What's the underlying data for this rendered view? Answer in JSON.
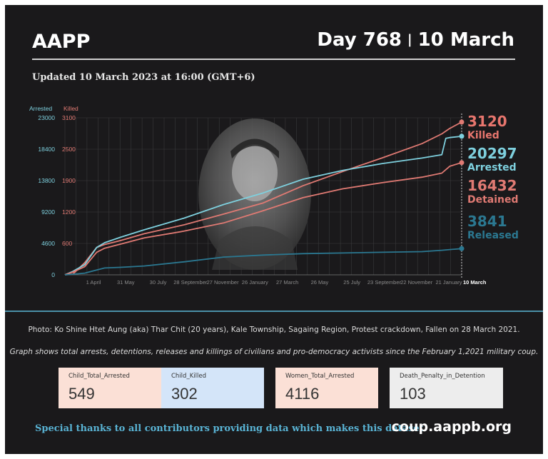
{
  "header": {
    "org": "AAPP",
    "day": "Day 768",
    "separator": "|",
    "date": "10 March"
  },
  "updated": "Updated 10 March 2023 at 16:00 (GMT+6)",
  "chart_data": {
    "type": "line",
    "left_axis_title": "Arrested",
    "right_axis_title": "Killed",
    "arrested_ticks": [
      "0",
      "4600",
      "9200",
      "13800",
      "18400",
      "23000"
    ],
    "killed_ticks": [
      "600",
      "1200",
      "1900",
      "2500",
      "3100"
    ],
    "arrested_range": [
      0,
      23000
    ],
    "x_labels": [
      "1 April",
      "31 May",
      "30 July",
      "28 September",
      "27 November",
      "26 January",
      "27 March",
      "26 May",
      "25 July",
      "23 September",
      "22 November",
      "21 January"
    ],
    "x_end_label": "10 March",
    "grid": true,
    "series": [
      {
        "name": "Killed",
        "color": "#e07a73",
        "x": [
          0,
          0.02,
          0.05,
          0.08,
          0.1,
          0.14,
          0.2,
          0.3,
          0.4,
          0.5,
          0.6,
          0.7,
          0.8,
          0.9,
          0.95,
          0.97,
          1.0
        ],
        "values": [
          0,
          15,
          250,
          560,
          620,
          700,
          840,
          1020,
          1240,
          1470,
          1820,
          2110,
          2390,
          2680,
          2880,
          2990,
          3120
        ]
      },
      {
        "name": "Arrested",
        "color": "#7ed0de",
        "x": [
          0,
          0.02,
          0.05,
          0.08,
          0.1,
          0.14,
          0.2,
          0.3,
          0.4,
          0.5,
          0.6,
          0.7,
          0.8,
          0.9,
          0.95,
          0.96,
          0.97,
          1.0
        ],
        "values": [
          0,
          500,
          1500,
          4000,
          4700,
          5500,
          6600,
          8300,
          10300,
          12000,
          14000,
          15300,
          16300,
          17100,
          17600,
          20000,
          20100,
          20297
        ]
      },
      {
        "name": "Detained",
        "color": "#e07a73",
        "x": [
          0,
          0.02,
          0.05,
          0.08,
          0.1,
          0.14,
          0.2,
          0.3,
          0.4,
          0.5,
          0.6,
          0.7,
          0.8,
          0.9,
          0.95,
          0.97,
          1.0
        ],
        "values": [
          0,
          400,
          1200,
          3300,
          3900,
          4500,
          5400,
          6400,
          7600,
          9400,
          11300,
          12600,
          13500,
          14300,
          14900,
          15900,
          16432
        ]
      },
      {
        "name": "Released",
        "color": "#2b7891",
        "x": [
          0,
          0.02,
          0.05,
          0.08,
          0.1,
          0.14,
          0.2,
          0.3,
          0.4,
          0.5,
          0.6,
          0.7,
          0.8,
          0.9,
          0.95,
          0.97,
          1.0
        ],
        "values": [
          0,
          80,
          250,
          700,
          1000,
          1100,
          1300,
          1900,
          2600,
          2900,
          3100,
          3200,
          3300,
          3400,
          3600,
          3700,
          3841
        ]
      }
    ],
    "end_labels": [
      {
        "number": "3120",
        "word": "Killed",
        "color": "#e8766e"
      },
      {
        "number": "20297",
        "word": "Arrested",
        "color": "#7ed0de"
      },
      {
        "number": "16432",
        "word": "Detained",
        "color": "#e07a73"
      },
      {
        "number": "3841",
        "word": "Released",
        "color": "#2b7891"
      }
    ]
  },
  "photo_caption": "Photo: Ko Shine Htet Aung (aka) Thar Chit (20 years), Kale Township, Sagaing Region, Protest crackdown, Fallen on 28 March 2021.",
  "graph_caption": "Graph shows total arrests, detentions, releases and killings of civilians and pro-democracy activists since the February 1,2021 military coup.",
  "stats": [
    {
      "label": "Child_Total_Arrested",
      "value": "549",
      "bg": "#fbe0d6"
    },
    {
      "label": "Child_Killed",
      "value": "302",
      "bg": "#d4e5f9"
    },
    {
      "label": "Women_Total_Arrested",
      "value": "4116",
      "bg": "#fbe0d6"
    },
    {
      "label": "Death_Penalty_in_Detention",
      "value": "103",
      "bg": "#ededed"
    }
  ],
  "footer": {
    "thanks": "Special thanks to all contributors providing data which makes this dataset.",
    "site": "coup.aappb.org"
  }
}
